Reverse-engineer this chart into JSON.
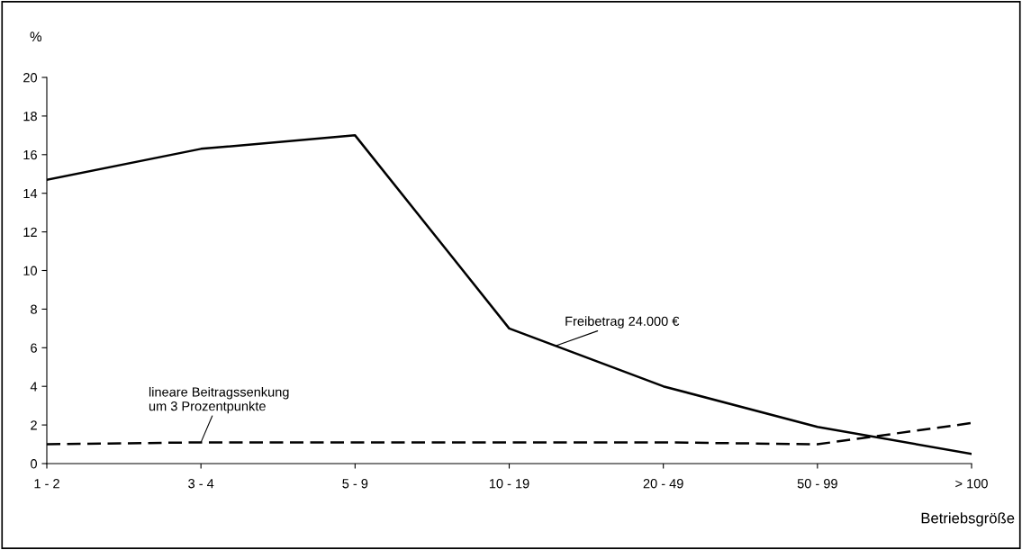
{
  "chart_data": {
    "type": "line",
    "ylabel": "%",
    "xlabel": "Betriebsgröße",
    "categories": [
      "1 - 2",
      "3 - 4",
      "5 - 9",
      "10 - 19",
      "20 - 49",
      "50 - 99",
      "> 100"
    ],
    "series": [
      {
        "name": "Freibetrag 24.000 €",
        "color": "#000000",
        "line_style": "solid",
        "values": [
          14.7,
          16.3,
          17.0,
          7.0,
          4.0,
          1.9,
          0.5
        ]
      },
      {
        "name": "lineare Beitragssenkung\num 3 Prozentpunkte",
        "color": "#000000",
        "line_style": "dashed",
        "values": [
          1.0,
          1.1,
          1.1,
          1.1,
          1.1,
          1.0,
          2.1
        ]
      }
    ],
    "ylim": [
      0,
      20
    ],
    "yticks": [
      0,
      2,
      4,
      6,
      8,
      10,
      12,
      14,
      16,
      18,
      20
    ],
    "grid": false,
    "legend": false,
    "marker": "none"
  }
}
